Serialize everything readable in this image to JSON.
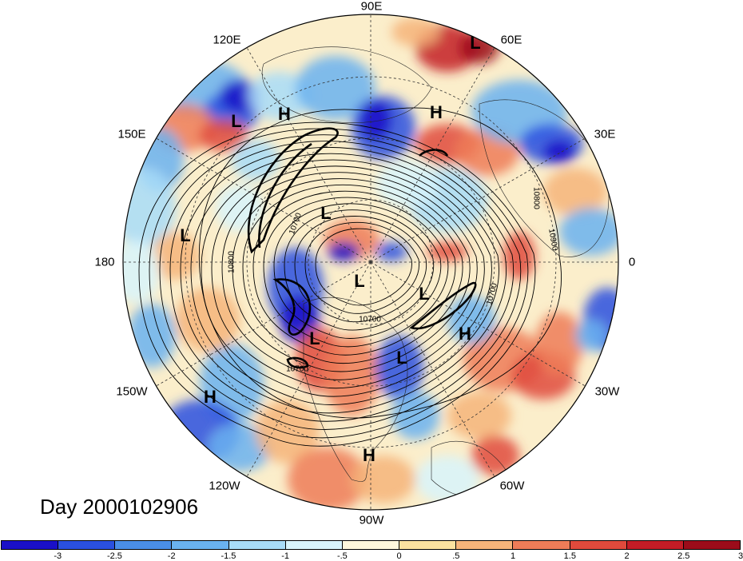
{
  "map": {
    "type": "polar stereographic",
    "hemisphere": "northern",
    "longitude_labels": [
      "90E",
      "60E",
      "30E",
      "0",
      "30W",
      "60W",
      "90W",
      "120W",
      "150W",
      "180",
      "150E",
      "120E"
    ],
    "contour_labels": [
      "10800",
      "10900",
      "10700",
      "10800",
      "10700",
      "10700",
      "10700"
    ],
    "pressure_centers": [
      {
        "id": "L1",
        "label": "L"
      },
      {
        "id": "L2",
        "label": "L"
      },
      {
        "id": "L3",
        "label": "L"
      },
      {
        "id": "L4",
        "label": "L"
      },
      {
        "id": "L5",
        "label": "L"
      },
      {
        "id": "L6",
        "label": "L"
      },
      {
        "id": "L7",
        "label": "L"
      },
      {
        "id": "L8",
        "label": "L"
      },
      {
        "id": "H1",
        "label": "H"
      },
      {
        "id": "H2",
        "label": "H"
      },
      {
        "id": "H3",
        "label": "H"
      },
      {
        "id": "H4",
        "label": "H"
      },
      {
        "id": "H5",
        "label": "H"
      }
    ]
  },
  "title": "Day 2000102906",
  "colorbar": {
    "colors": [
      "#1a10c8",
      "#2a50e0",
      "#4a8ee8",
      "#6ab2f0",
      "#a8dcf8",
      "#d8f4fc",
      "#fff8dc",
      "#fbe2a0",
      "#f6b47a",
      "#ee7c58",
      "#e04a3c",
      "#c41c26",
      "#9c0c1a"
    ],
    "tick_labels": [
      "-3",
      "-2.5",
      "-2",
      "-1.5",
      "-1",
      "-.5",
      "0",
      ".5",
      "1",
      "1.5",
      "2",
      "2.5",
      "3"
    ]
  }
}
